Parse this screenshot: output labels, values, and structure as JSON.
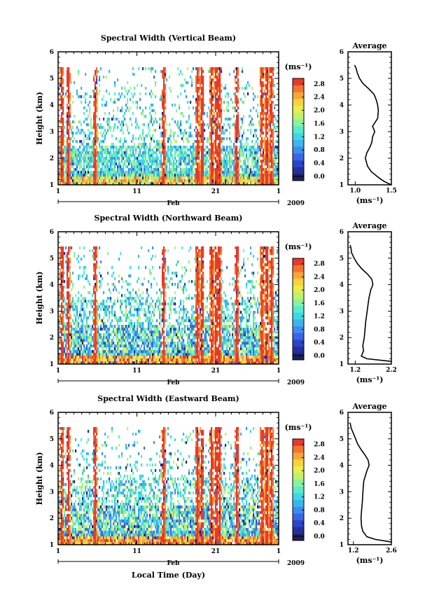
{
  "chart_data": [
    {
      "type": "heatmap",
      "title": "Spectral Width (Vertical Beam)",
      "ylabel": "Height (km)",
      "x_ticks": [
        "1",
        "11",
        "21",
        "1"
      ],
      "month_label": "Feb",
      "year_label": "2009",
      "xlabel": "",
      "ylim": [
        1,
        6
      ],
      "y_ticks": [
        "1",
        "2",
        "3",
        "4",
        "5",
        "6"
      ],
      "x_range_days": [
        1,
        29
      ],
      "colorbar": {
        "unit": "(ms⁻¹)",
        "range": [
          0.0,
          3.0
        ],
        "ticks": [
          "0.0",
          "0.4",
          "0.8",
          "1.2",
          "1.6",
          "2.0",
          "2.4",
          "2.8"
        ]
      },
      "average_profile": {
        "title": "Average",
        "xlabel": "(ms⁻¹)",
        "x_ticks": [
          "1.0",
          "1.5"
        ],
        "xlim": [
          0.9,
          1.5
        ],
        "height": [
          1.0,
          1.1,
          1.2,
          1.3,
          1.5,
          1.7,
          2.0,
          2.2,
          2.4,
          2.6,
          2.8,
          3.0,
          3.2,
          3.5,
          3.8,
          4.0,
          4.2,
          4.4,
          4.6,
          4.8,
          5.0,
          5.2,
          5.4,
          5.5
        ],
        "width": [
          1.5,
          1.42,
          1.36,
          1.31,
          1.22,
          1.17,
          1.14,
          1.16,
          1.2,
          1.23,
          1.24,
          1.27,
          1.24,
          1.31,
          1.32,
          1.31,
          1.29,
          1.26,
          1.19,
          1.11,
          1.06,
          1.03,
          1.01,
          0.99
        ]
      }
    },
    {
      "type": "heatmap",
      "title": "Spectral Width (Northward Beam)",
      "ylabel": "Height (km)",
      "x_ticks": [
        "1",
        "11",
        "21",
        "1"
      ],
      "month_label": "Feb",
      "year_label": "2009",
      "xlabel": "",
      "ylim": [
        1,
        6
      ],
      "y_ticks": [
        "1",
        "2",
        "3",
        "4",
        "5",
        "6"
      ],
      "x_range_days": [
        1,
        29
      ],
      "colorbar": {
        "unit": "(ms⁻¹)",
        "range": [
          0.0,
          3.0
        ],
        "ticks": [
          "0.0",
          "0.4",
          "0.8",
          "1.2",
          "1.6",
          "2.0",
          "2.4",
          "2.8"
        ]
      },
      "average_profile": {
        "title": "Average",
        "xlabel": "(ms⁻¹)",
        "x_ticks": [
          "1.2",
          "2.2"
        ],
        "xlim": [
          1.0,
          2.2
        ],
        "height": [
          1.1,
          1.2,
          1.3,
          1.5,
          1.7,
          2.0,
          2.3,
          2.6,
          2.9,
          3.2,
          3.5,
          3.8,
          4.0,
          4.2,
          4.4,
          4.6,
          4.8,
          5.0,
          5.2,
          5.4,
          5.5
        ],
        "width": [
          2.2,
          1.52,
          1.37,
          1.43,
          1.41,
          1.45,
          1.47,
          1.49,
          1.52,
          1.55,
          1.58,
          1.63,
          1.69,
          1.66,
          1.54,
          1.38,
          1.26,
          1.17,
          1.1,
          1.08,
          1.06
        ]
      }
    },
    {
      "type": "heatmap",
      "title": "Spectral Width (Eastward Beam)",
      "ylabel": "Height (km)",
      "x_ticks": [
        "1",
        "11",
        "21",
        "1"
      ],
      "month_label": "Feb",
      "year_label": "2009",
      "xlabel": "Local Time (Day)",
      "ylim": [
        1,
        6
      ],
      "y_ticks": [
        "1",
        "2",
        "3",
        "4",
        "5",
        "6"
      ],
      "x_range_days": [
        1,
        29
      ],
      "colorbar": {
        "unit": "(ms⁻¹)",
        "range": [
          0.0,
          3.0
        ],
        "ticks": [
          "0.0",
          "0.4",
          "0.8",
          "1.2",
          "1.6",
          "2.0",
          "2.4",
          "2.8"
        ]
      },
      "average_profile": {
        "title": "Average",
        "xlabel": "(ms⁻¹)",
        "x_ticks": [
          "1.2",
          "2.6"
        ],
        "xlim": [
          1.0,
          2.6
        ],
        "height": [
          1.1,
          1.2,
          1.3,
          1.5,
          1.7,
          2.0,
          2.3,
          2.6,
          3.0,
          3.4,
          3.8,
          4.0,
          4.2,
          4.4,
          4.6,
          4.8,
          5.0,
          5.2,
          5.4,
          5.6
        ],
        "width": [
          2.6,
          2.0,
          1.7,
          1.55,
          1.5,
          1.48,
          1.5,
          1.53,
          1.55,
          1.58,
          1.7,
          1.78,
          1.74,
          1.62,
          1.48,
          1.36,
          1.28,
          1.2,
          1.12,
          1.08
        ]
      }
    }
  ]
}
